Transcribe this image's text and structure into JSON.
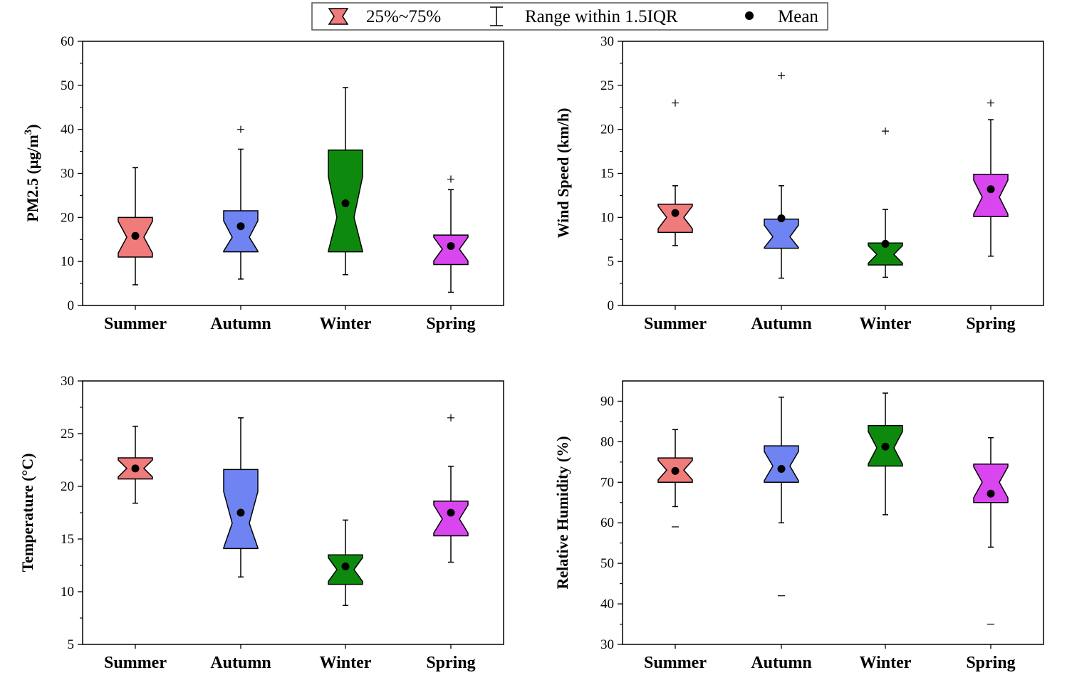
{
  "legend": {
    "box_label": "25%~75%",
    "whisker_label": "Range within 1.5IQR",
    "mean_label": "Mean"
  },
  "colors": {
    "Summer": "#f07b7b",
    "Autumn": "#6f84f2",
    "Winter": "#0d8a0d",
    "Spring": "#d946ef"
  },
  "chart_data": [
    {
      "type": "box",
      "ylabel": "PM2.5 (μg/m3)",
      "ylabel_main": "PM2.5 (μg/m",
      "ylabel_sup": "3",
      "ylabel_tail": ")",
      "ylim": [
        0,
        60
      ],
      "yticks": [
        0,
        10,
        20,
        30,
        40,
        50,
        60
      ],
      "categories": [
        "Summer",
        "Autumn",
        "Winter",
        "Spring"
      ],
      "boxes": [
        {
          "q1": 11,
          "median": 15.5,
          "q3": 20,
          "whisker_low": 4.7,
          "whisker_high": 31.3,
          "mean": 15.8,
          "outliers_plus": [],
          "outliers_minus": []
        },
        {
          "q1": 12.2,
          "median": 15.5,
          "q3": 21.5,
          "whisker_low": 6,
          "whisker_high": 35.5,
          "mean": 18,
          "outliers_plus": [
            40
          ],
          "outliers_minus": []
        },
        {
          "q1": 12.2,
          "median": 20,
          "q3": 35.3,
          "whisker_low": 7,
          "whisker_high": 49.5,
          "mean": 23.2,
          "outliers_plus": [],
          "outliers_minus": []
        },
        {
          "q1": 9.3,
          "median": 12.8,
          "q3": 16,
          "whisker_low": 3,
          "whisker_high": 26.3,
          "mean": 13.5,
          "outliers_plus": [
            28.7
          ],
          "outliers_minus": []
        }
      ]
    },
    {
      "type": "box",
      "ylabel": "Wind Speed (km/h)",
      "ylim": [
        0,
        30
      ],
      "yticks": [
        0,
        5,
        10,
        15,
        20,
        25,
        30
      ],
      "categories": [
        "Summer",
        "Autumn",
        "Winter",
        "Spring"
      ],
      "boxes": [
        {
          "q1": 8.3,
          "median": 10,
          "q3": 11.5,
          "whisker_low": 6.8,
          "whisker_high": 13.6,
          "mean": 10.5,
          "outliers_plus": [
            23
          ],
          "outliers_minus": []
        },
        {
          "q1": 6.5,
          "median": 7.8,
          "q3": 9.8,
          "whisker_low": 3.1,
          "whisker_high": 13.6,
          "mean": 9.9,
          "outliers_plus": [
            26.1
          ],
          "outliers_minus": []
        },
        {
          "q1": 4.6,
          "median": 5.8,
          "q3": 7.1,
          "whisker_low": 3.2,
          "whisker_high": 10.9,
          "mean": 7,
          "outliers_plus": [
            19.8
          ],
          "outliers_minus": []
        },
        {
          "q1": 10.1,
          "median": 12.3,
          "q3": 14.9,
          "whisker_low": 5.6,
          "whisker_high": 21.1,
          "mean": 13.2,
          "outliers_plus": [
            23
          ],
          "outliers_minus": []
        }
      ]
    },
    {
      "type": "box",
      "ylabel": "Temperature (°C)",
      "ylim": [
        5,
        30
      ],
      "yticks": [
        5,
        10,
        15,
        20,
        25,
        30
      ],
      "categories": [
        "Summer",
        "Autumn",
        "Winter",
        "Spring"
      ],
      "boxes": [
        {
          "q1": 20.7,
          "median": 21.7,
          "q3": 22.7,
          "whisker_low": 18.4,
          "whisker_high": 25.7,
          "mean": 21.7,
          "outliers_plus": [],
          "outliers_minus": []
        },
        {
          "q1": 14.1,
          "median": 16.5,
          "q3": 21.6,
          "whisker_low": 11.4,
          "whisker_high": 26.5,
          "mean": 17.5,
          "outliers_plus": [],
          "outliers_minus": []
        },
        {
          "q1": 10.7,
          "median": 12.1,
          "q3": 13.5,
          "whisker_low": 8.7,
          "whisker_high": 16.8,
          "mean": 12.4,
          "outliers_plus": [],
          "outliers_minus": []
        },
        {
          "q1": 15.3,
          "median": 16.9,
          "q3": 18.6,
          "whisker_low": 12.8,
          "whisker_high": 21.9,
          "mean": 17.5,
          "outliers_plus": [
            26.5
          ],
          "outliers_minus": []
        }
      ]
    },
    {
      "type": "box",
      "ylabel": "Relative Humidity (%)",
      "ylim": [
        30,
        95
      ],
      "yticks": [
        30,
        40,
        50,
        60,
        70,
        80,
        90
      ],
      "categories": [
        "Summer",
        "Autumn",
        "Winter",
        "Spring"
      ],
      "boxes": [
        {
          "q1": 70,
          "median": 73,
          "q3": 76,
          "whisker_low": 64,
          "whisker_high": 83,
          "mean": 72.8,
          "outliers_plus": [],
          "outliers_minus": [
            59
          ]
        },
        {
          "q1": 70,
          "median": 74,
          "q3": 79,
          "whisker_low": 60,
          "whisker_high": 91,
          "mean": 73.3,
          "outliers_plus": [],
          "outliers_minus": [
            42
          ]
        },
        {
          "q1": 74,
          "median": 78.5,
          "q3": 84,
          "whisker_low": 62,
          "whisker_high": 92,
          "mean": 78.8,
          "outliers_plus": [],
          "outliers_minus": []
        },
        {
          "q1": 65,
          "median": 70,
          "q3": 74.5,
          "whisker_low": 54,
          "whisker_high": 81,
          "mean": 67.2,
          "outliers_plus": [],
          "outliers_minus": [
            35
          ]
        }
      ]
    }
  ]
}
